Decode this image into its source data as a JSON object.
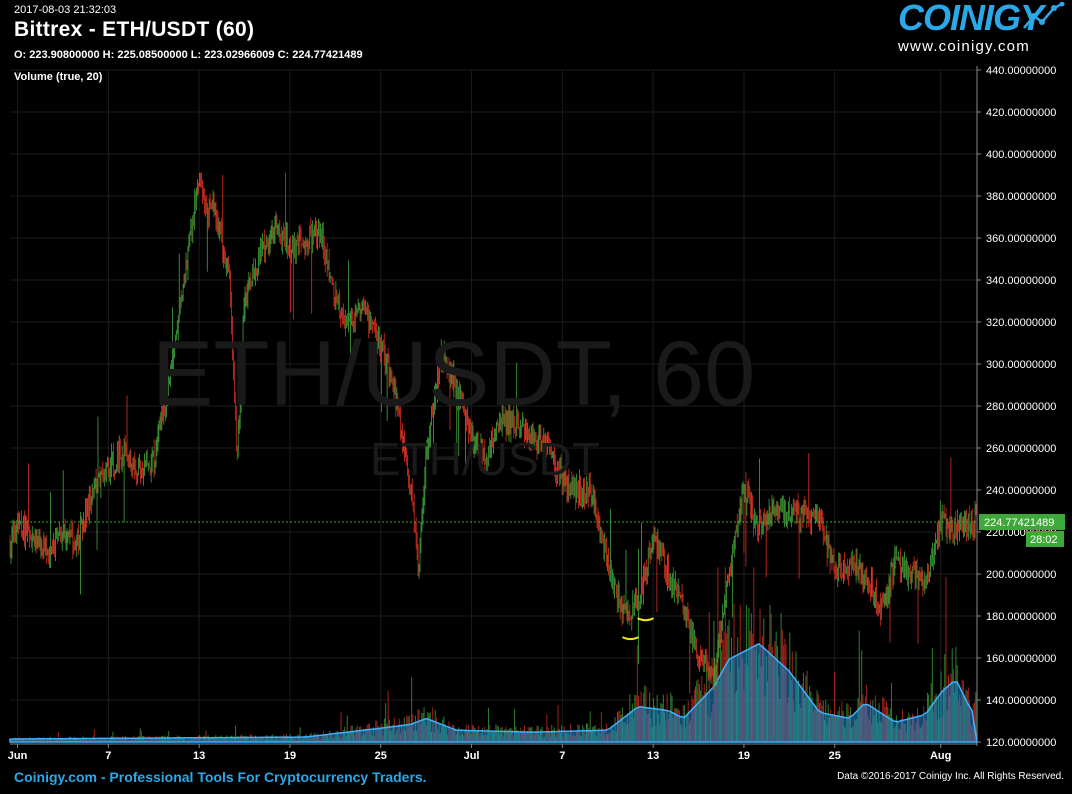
{
  "header": {
    "timestamp": "2017-08-03 21:32:03",
    "title": "Bittrex - ETH/USDT (60)",
    "ohlc": "O: 223.90800000 H: 225.08500000 L: 223.02966009 C: 224.77421489",
    "volume_study": "Volume (true, 20)"
  },
  "logo": {
    "name": "COINIGY",
    "url": "www.coinigy.com",
    "icon": "chart-line-icon"
  },
  "watermark": {
    "pair_interval": "ETH/USDT, 60",
    "pair": "ETH/USDT"
  },
  "footer": {
    "tagline": "Coinigy.com - Professional Tools For Cryptocurrency Traders.",
    "copyright": "Data ©2016-2017 Coinigy Inc. All Rights Reserved."
  },
  "colors": {
    "background": "#000000",
    "up": "#3fa83a",
    "down": "#d93020",
    "volume": "#1e88d0",
    "last_price": "#3fa83a",
    "brand": "#2aa8e8",
    "annotation": "#f2e21b"
  },
  "chart_data": {
    "type": "candlestick",
    "title": "Bittrex - ETH/USDT (60)",
    "ylim": [
      120,
      440
    ],
    "y_ticks": [
      "440.00000000",
      "420.00000000",
      "400.00000000",
      "380.00000000",
      "360.00000000",
      "340.00000000",
      "320.00000000",
      "300.00000000",
      "280.00000000",
      "260.00000000",
      "240.00000000",
      "220.00000000",
      "200.00000000",
      "180.00000000",
      "160.00000000",
      "140.00000000",
      "120.00000000"
    ],
    "x_ticks": [
      {
        "label": "Jun",
        "day": 1
      },
      {
        "label": "7",
        "day": 7
      },
      {
        "label": "13",
        "day": 13
      },
      {
        "label": "19",
        "day": 19
      },
      {
        "label": "25",
        "day": 25
      },
      {
        "label": "Jul",
        "day": 31
      },
      {
        "label": "7",
        "day": 37
      },
      {
        "label": "13",
        "day": 43
      },
      {
        "label": "19",
        "day": 49
      },
      {
        "label": "25",
        "day": 55
      },
      {
        "label": "Aug",
        "day": 62
      }
    ],
    "x_range_days": [
      0.5,
      64.4
    ],
    "grid": true,
    "last_price": 224.77421489,
    "last_price_label": "224.77421489",
    "countdown_label": "28:02",
    "price_path": [
      [
        0.5,
        215
      ],
      [
        1,
        222
      ],
      [
        2,
        218
      ],
      [
        3,
        212
      ],
      [
        4,
        220
      ],
      [
        5,
        215
      ],
      [
        6,
        240
      ],
      [
        7,
        250
      ],
      [
        8,
        258
      ],
      [
        9,
        248
      ],
      [
        10,
        255
      ],
      [
        11,
        290
      ],
      [
        12,
        340
      ],
      [
        13,
        390
      ],
      [
        13.5,
        370
      ],
      [
        14,
        375
      ],
      [
        15,
        340
      ],
      [
        15.5,
        255
      ],
      [
        16,
        330
      ],
      [
        17,
        350
      ],
      [
        18,
        365
      ],
      [
        19,
        355
      ],
      [
        20,
        358
      ],
      [
        21,
        362
      ],
      [
        22,
        330
      ],
      [
        23,
        320
      ],
      [
        24,
        325
      ],
      [
        25,
        310
      ],
      [
        26,
        285
      ],
      [
        27,
        240
      ],
      [
        27.5,
        200
      ],
      [
        28,
        260
      ],
      [
        29,
        305
      ],
      [
        30,
        290
      ],
      [
        31,
        265
      ],
      [
        32,
        255
      ],
      [
        33,
        275
      ],
      [
        34,
        270
      ],
      [
        35,
        265
      ],
      [
        36,
        262
      ],
      [
        37,
        245
      ],
      [
        38,
        240
      ],
      [
        39,
        238
      ],
      [
        40,
        205
      ],
      [
        41,
        180
      ],
      [
        42,
        185
      ],
      [
        43,
        220
      ],
      [
        44,
        200
      ],
      [
        45,
        185
      ],
      [
        46,
        160
      ],
      [
        47,
        148
      ],
      [
        48,
        200
      ],
      [
        49,
        240
      ],
      [
        50,
        222
      ],
      [
        51,
        232
      ],
      [
        52,
        230
      ],
      [
        53,
        228
      ],
      [
        54,
        225
      ],
      [
        55,
        200
      ],
      [
        56,
        205
      ],
      [
        57,
        200
      ],
      [
        58,
        185
      ],
      [
        59,
        205
      ],
      [
        60,
        200
      ],
      [
        61,
        195
      ],
      [
        62,
        225
      ],
      [
        63,
        220
      ],
      [
        64,
        224.8
      ]
    ],
    "volume_profile": [
      [
        0.5,
        1.5
      ],
      [
        10,
        2
      ],
      [
        20,
        2.5
      ],
      [
        25,
        7
      ],
      [
        27,
        9
      ],
      [
        28,
        12
      ],
      [
        30,
        6
      ],
      [
        35,
        5
      ],
      [
        40,
        6
      ],
      [
        42,
        18
      ],
      [
        44,
        16
      ],
      [
        45,
        12
      ],
      [
        47,
        28
      ],
      [
        48,
        42
      ],
      [
        50,
        50
      ],
      [
        52,
        36
      ],
      [
        54,
        15
      ],
      [
        56,
        12
      ],
      [
        57,
        20
      ],
      [
        59,
        10
      ],
      [
        61,
        14
      ],
      [
        62,
        25
      ],
      [
        63,
        32
      ],
      [
        64,
        16
      ]
    ],
    "volume_ylim": [
      0,
      80
    ],
    "annotations": [
      {
        "type": "low-mark",
        "day": 41.5,
        "price": 169
      },
      {
        "type": "low-mark",
        "day": 42.5,
        "price": 178
      }
    ]
  }
}
